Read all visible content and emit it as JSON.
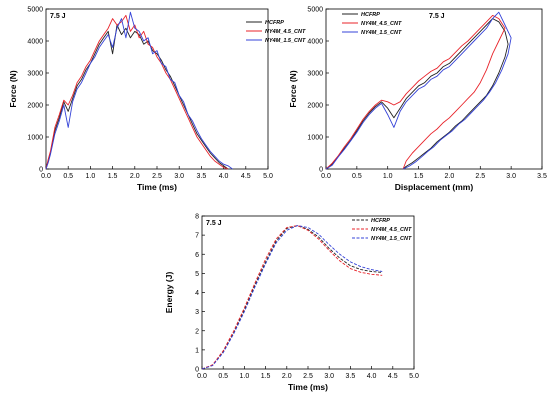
{
  "colors": {
    "series": [
      "#222222",
      "#e8232a",
      "#3543d8"
    ]
  },
  "chart_data": [
    {
      "id": "force-time",
      "type": "line",
      "annotation": "7.5 J",
      "xlabel": "Time (ms)",
      "ylabel": "Force (N)",
      "xlim": [
        0,
        5
      ],
      "ylim": [
        0,
        5000
      ],
      "xticks": [
        "0.0",
        "0.5",
        "1.0",
        "1.5",
        "2.0",
        "2.5",
        "3.0",
        "3.5",
        "4.0",
        "4.5",
        "5.0"
      ],
      "yticks": [
        "0",
        "1000",
        "2000",
        "3000",
        "4000",
        "5000"
      ],
      "legend": "top-right",
      "series": [
        {
          "name": "HCFRP",
          "style": "solid",
          "x": [
            0,
            0.05,
            0.1,
            0.2,
            0.3,
            0.4,
            0.5,
            0.6,
            0.7,
            0.8,
            0.9,
            1.0,
            1.1,
            1.2,
            1.3,
            1.4,
            1.5,
            1.6,
            1.7,
            1.8,
            1.9,
            2.0,
            2.1,
            2.2,
            2.3,
            2.4,
            2.5,
            2.6,
            2.7,
            2.8,
            2.9,
            3.0,
            3.1,
            3.2,
            3.3,
            3.4,
            3.5,
            3.6,
            3.7,
            3.8,
            3.9,
            4.0,
            4.1
          ],
          "y": [
            0,
            250,
            500,
            1200,
            1600,
            2100,
            1800,
            2200,
            2600,
            2800,
            3100,
            3300,
            3600,
            3900,
            4100,
            4300,
            3600,
            4500,
            4200,
            4400,
            4100,
            4300,
            4200,
            3900,
            4000,
            3700,
            3600,
            3400,
            3100,
            2900,
            2600,
            2300,
            2000,
            1700,
            1400,
            1100,
            900,
            700,
            500,
            350,
            200,
            100,
            0
          ]
        },
        {
          "name": "NY4M_4.5_CNT",
          "style": "solid",
          "x": [
            0,
            0.05,
            0.1,
            0.2,
            0.3,
            0.4,
            0.5,
            0.6,
            0.7,
            0.8,
            0.9,
            1.0,
            1.1,
            1.2,
            1.3,
            1.4,
            1.5,
            1.6,
            1.7,
            1.8,
            1.9,
            2.0,
            2.1,
            2.2,
            2.3,
            2.4,
            2.5,
            2.6,
            2.7,
            2.8,
            2.9,
            3.0,
            3.1,
            3.2,
            3.3,
            3.4,
            3.5,
            3.6,
            3.7,
            3.8,
            3.9,
            4.0,
            4.1
          ],
          "y": [
            0,
            300,
            550,
            1300,
            1700,
            2150,
            2000,
            2300,
            2700,
            2900,
            3200,
            3400,
            3700,
            4000,
            4200,
            4400,
            4700,
            4500,
            4600,
            4800,
            4300,
            4500,
            4100,
            4300,
            3900,
            3800,
            3500,
            3300,
            3000,
            2800,
            2500,
            2200,
            1900,
            1600,
            1300,
            1000,
            800,
            600,
            400,
            250,
            150,
            50,
            0
          ]
        },
        {
          "name": "NY4M_1.5_CNT",
          "style": "solid",
          "x": [
            0,
            0.05,
            0.1,
            0.2,
            0.3,
            0.4,
            0.5,
            0.6,
            0.7,
            0.8,
            0.9,
            1.0,
            1.1,
            1.2,
            1.3,
            1.4,
            1.5,
            1.6,
            1.7,
            1.8,
            1.9,
            2.0,
            2.1,
            2.2,
            2.3,
            2.4,
            2.5,
            2.6,
            2.7,
            2.8,
            2.9,
            3.0,
            3.1,
            3.2,
            3.3,
            3.4,
            3.5,
            3.6,
            3.7,
            3.8,
            3.9,
            4.0,
            4.1,
            4.2
          ],
          "y": [
            0,
            200,
            450,
            1100,
            1500,
            2000,
            1300,
            2100,
            2500,
            2700,
            3000,
            3300,
            3500,
            3800,
            4000,
            4200,
            3800,
            4400,
            4700,
            4100,
            4900,
            4400,
            4300,
            4000,
            4100,
            3600,
            3700,
            3300,
            3200,
            2800,
            2700,
            2300,
            2100,
            1700,
            1500,
            1200,
            950,
            750,
            550,
            400,
            250,
            150,
            100,
            0
          ]
        }
      ]
    },
    {
      "id": "force-displacement",
      "type": "line",
      "annotation": "7.5 J",
      "xlabel": "Displacement (mm)",
      "ylabel": "Force (N)",
      "xlim": [
        0,
        3.5
      ],
      "ylim": [
        0,
        5000
      ],
      "xticks": [
        "0.0",
        "0.5",
        "1.0",
        "1.5",
        "2.0",
        "2.5",
        "3.0",
        "3.5"
      ],
      "yticks": [
        "0",
        "1000",
        "2000",
        "3000",
        "4000",
        "5000"
      ],
      "legend": "top-left",
      "series": [
        {
          "name": "HCFRP",
          "style": "solid",
          "x": [
            0,
            0.1,
            0.2,
            0.3,
            0.4,
            0.5,
            0.6,
            0.7,
            0.8,
            0.9,
            1.0,
            1.1,
            1.2,
            1.3,
            1.4,
            1.5,
            1.6,
            1.7,
            1.8,
            1.9,
            2.0,
            2.1,
            2.2,
            2.3,
            2.4,
            2.5,
            2.6,
            2.7,
            2.8,
            2.9,
            2.95,
            2.9,
            2.8,
            2.7,
            2.6,
            2.5,
            2.4,
            2.3,
            2.2,
            2.1,
            2.0,
            1.9,
            1.8,
            1.7,
            1.6,
            1.5,
            1.4,
            1.3,
            1.25
          ],
          "y": [
            0,
            150,
            400,
            650,
            900,
            1200,
            1500,
            1750,
            1950,
            2100,
            1900,
            1600,
            1900,
            2200,
            2400,
            2600,
            2700,
            2900,
            3000,
            3200,
            3300,
            3500,
            3700,
            3900,
            4100,
            4300,
            4500,
            4700,
            4600,
            4300,
            3900,
            3500,
            3000,
            2600,
            2300,
            2100,
            1900,
            1700,
            1500,
            1350,
            1150,
            1000,
            850,
            650,
            500,
            350,
            200,
            80,
            0
          ]
        },
        {
          "name": "NY4M_4.5_CNT",
          "style": "solid",
          "x": [
            0,
            0.1,
            0.2,
            0.3,
            0.4,
            0.5,
            0.6,
            0.7,
            0.8,
            0.9,
            1.0,
            1.1,
            1.2,
            1.3,
            1.4,
            1.5,
            1.6,
            1.7,
            1.8,
            1.9,
            2.0,
            2.1,
            2.2,
            2.3,
            2.4,
            2.5,
            2.6,
            2.7,
            2.8,
            2.9,
            2.8,
            2.7,
            2.6,
            2.5,
            2.4,
            2.3,
            2.2,
            2.1,
            2.0,
            1.9,
            1.8,
            1.7,
            1.6,
            1.5,
            1.4,
            1.3,
            1.25
          ],
          "y": [
            0,
            180,
            420,
            700,
            950,
            1250,
            1550,
            1800,
            2000,
            2150,
            2100,
            2000,
            2100,
            2350,
            2550,
            2750,
            2900,
            3050,
            3150,
            3350,
            3450,
            3650,
            3850,
            4000,
            4200,
            4400,
            4600,
            4800,
            4700,
            4400,
            4000,
            3600,
            3100,
            2700,
            2400,
            2200,
            2000,
            1800,
            1600,
            1450,
            1250,
            1100,
            900,
            700,
            500,
            250,
            0
          ]
        },
        {
          "name": "NY4M_1.5_CNT",
          "style": "solid",
          "x": [
            0,
            0.1,
            0.2,
            0.3,
            0.4,
            0.5,
            0.6,
            0.7,
            0.8,
            0.9,
            1.0,
            1.1,
            1.2,
            1.3,
            1.4,
            1.5,
            1.6,
            1.7,
            1.8,
            1.9,
            2.0,
            2.1,
            2.2,
            2.3,
            2.4,
            2.5,
            2.6,
            2.7,
            2.8,
            2.9,
            3.0,
            2.95,
            2.85,
            2.75,
            2.65,
            2.55,
            2.45,
            2.35,
            2.25,
            2.15,
            2.05,
            1.95,
            1.85,
            1.75,
            1.65,
            1.55,
            1.45,
            1.35,
            1.25
          ],
          "y": [
            0,
            120,
            380,
            620,
            880,
            1150,
            1450,
            1700,
            1900,
            2050,
            1700,
            1300,
            1800,
            2100,
            2300,
            2500,
            2600,
            2800,
            2900,
            3100,
            3200,
            3400,
            3600,
            3800,
            4000,
            4200,
            4400,
            4700,
            4900,
            4500,
            4100,
            3600,
            3100,
            2700,
            2400,
            2150,
            1950,
            1750,
            1550,
            1400,
            1200,
            1050,
            900,
            700,
            550,
            380,
            220,
            90,
            0
          ]
        }
      ]
    },
    {
      "id": "energy-time",
      "type": "line",
      "annotation": "7.5 J",
      "xlabel": "Time (ms)",
      "ylabel": "Energy (J)",
      "xlim": [
        0,
        5
      ],
      "ylim": [
        0,
        8
      ],
      "xticks": [
        "0.0",
        "0.5",
        "1.0",
        "1.5",
        "2.0",
        "2.5",
        "3.0",
        "3.5",
        "4.0",
        "4.5",
        "5.0"
      ],
      "yticks": [
        "0",
        "1",
        "2",
        "3",
        "4",
        "5",
        "6",
        "7",
        "8"
      ],
      "legend": "top-right",
      "series": [
        {
          "name": "HCFRP",
          "style": "dashed",
          "x": [
            0,
            0.25,
            0.5,
            0.75,
            1.0,
            1.25,
            1.5,
            1.75,
            2.0,
            2.25,
            2.5,
            2.75,
            3.0,
            3.25,
            3.5,
            3.75,
            4.0,
            4.25
          ],
          "y": [
            0,
            0.2,
            0.9,
            1.9,
            3.1,
            4.4,
            5.6,
            6.7,
            7.35,
            7.5,
            7.3,
            6.9,
            6.3,
            5.8,
            5.4,
            5.2,
            5.1,
            5.05
          ]
        },
        {
          "name": "NY4M_4.5_CNT",
          "style": "dashed",
          "x": [
            0,
            0.25,
            0.5,
            0.75,
            1.0,
            1.25,
            1.5,
            1.75,
            2.0,
            2.25,
            2.5,
            2.75,
            3.0,
            3.25,
            3.5,
            3.75,
            4.0,
            4.25
          ],
          "y": [
            0,
            0.22,
            0.95,
            2.0,
            3.2,
            4.5,
            5.75,
            6.8,
            7.4,
            7.5,
            7.25,
            6.8,
            6.2,
            5.65,
            5.25,
            5.05,
            4.95,
            4.9
          ]
        },
        {
          "name": "NY4M_1.5_CNT",
          "style": "dashed",
          "x": [
            0,
            0.25,
            0.5,
            0.75,
            1.0,
            1.25,
            1.5,
            1.75,
            2.0,
            2.25,
            2.5,
            2.75,
            3.0,
            3.25,
            3.5,
            3.75,
            4.0,
            4.25
          ],
          "y": [
            0,
            0.18,
            0.85,
            1.85,
            3.0,
            4.3,
            5.5,
            6.6,
            7.25,
            7.5,
            7.4,
            7.05,
            6.5,
            6.0,
            5.6,
            5.35,
            5.2,
            5.1
          ]
        }
      ]
    }
  ]
}
